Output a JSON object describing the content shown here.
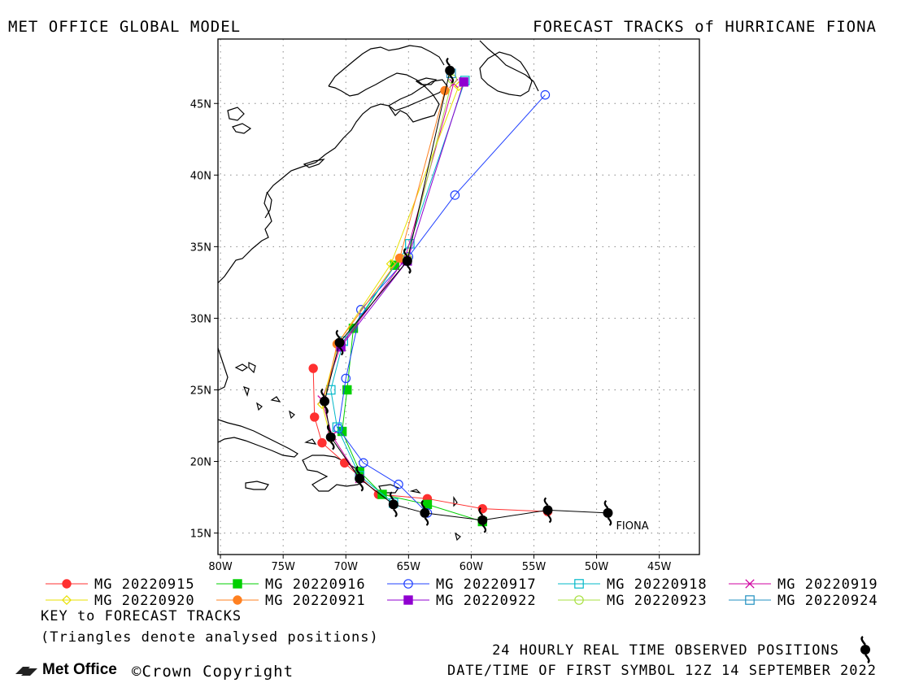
{
  "header": {
    "left": "MET OFFICE GLOBAL MODEL",
    "right": "FORECAST TRACKS of HURRICANE FIONA"
  },
  "footer": {
    "key_title": "KEY to FORECAST TRACKS",
    "key_subtitle": "(Triangles denote analysed positions)",
    "observed_note": "24 HOURLY REAL TIME OBSERVED POSITIONS",
    "first_symbol": "DATE/TIME OF FIRST SYMBOL 12Z 14 SEPTEMBER 2022",
    "logo": "Met Office",
    "copyright": "Crown Copyright"
  },
  "chart_data": {
    "type": "line",
    "title": "FORECAST TRACKS of HURRICANE FIONA",
    "xlabel": "",
    "ylabel": "",
    "xlim": [
      -80.2,
      -41.8
    ],
    "ylim": [
      13.5,
      49.5
    ],
    "xticks": [
      -80,
      -75,
      -70,
      -65,
      -60,
      -55,
      -50,
      -45
    ],
    "xtick_labels": [
      "80W",
      "75W",
      "70W",
      "65W",
      "60W",
      "55W",
      "50W",
      "45W"
    ],
    "yticks": [
      15,
      20,
      25,
      30,
      35,
      40,
      45
    ],
    "ytick_labels": [
      "15N",
      "20N",
      "25N",
      "30N",
      "35N",
      "40N",
      "45N"
    ],
    "grid": true,
    "storm_label": "FIONA",
    "observed": {
      "name": "24 HOURLY REAL TIME OBSERVED POSITIONS",
      "lons": [
        -49.1,
        -53.9,
        -59.1,
        -63.7,
        -66.2,
        -68.9,
        -71.2,
        -71.7,
        -70.5,
        -65.1,
        -61.7
      ],
      "lats": [
        16.4,
        16.6,
        15.9,
        16.4,
        17.0,
        18.8,
        21.7,
        24.2,
        28.3,
        34.0,
        47.3
      ]
    },
    "series": [
      {
        "name": "MG 20220915",
        "color": "#ff3030",
        "marker": "circle-filled",
        "lons": [
          -53.9,
          -59.1,
          -63.5,
          -67.4,
          -70.1,
          -71.9,
          -72.5,
          -72.6
        ],
        "lats": [
          16.5,
          16.7,
          17.4,
          17.7,
          19.9,
          21.3,
          23.1,
          26.5
        ]
      },
      {
        "name": "MG 20220916",
        "color": "#00d000",
        "marker": "square-filled",
        "lons": [
          -59.1,
          -63.5,
          -67.1,
          -68.9,
          -70.3,
          -69.9,
          -69.4,
          -66.1
        ],
        "lats": [
          15.8,
          17.0,
          17.7,
          19.3,
          22.1,
          25.0,
          29.3,
          33.7
        ]
      },
      {
        "name": "MG 20220917",
        "color": "#2040ff",
        "marker": "circle-open",
        "lons": [
          -63.5,
          -65.8,
          -68.6,
          -70.6,
          -70.0,
          -68.8,
          -65.0,
          -61.3,
          -54.1
        ],
        "lats": [
          16.4,
          18.4,
          19.9,
          22.3,
          25.8,
          30.6,
          34.3,
          38.6,
          45.6
        ]
      },
      {
        "name": "MG 20220918",
        "color": "#00b8c8",
        "marker": "square-open",
        "lons": [
          -66.2,
          -68.9,
          -70.7,
          -71.2,
          -70.2,
          -64.9,
          -60.5
        ],
        "lats": [
          17.1,
          19.0,
          22.4,
          25.0,
          28.4,
          35.2,
          46.6
        ]
      },
      {
        "name": "MG 20220919",
        "color": "#d000a0",
        "marker": "x",
        "lons": [
          -68.9,
          -71.1,
          -71.9,
          -70.4,
          -65.3,
          -61.4
        ],
        "lats": [
          18.8,
          21.8,
          24.3,
          28.1,
          34.1,
          46.4
        ]
      },
      {
        "name": "MG 20220920",
        "color": "#e8e000",
        "marker": "diamond-open",
        "lons": [
          -71.2,
          -71.9,
          -70.6,
          -66.4,
          -61.0
        ],
        "lats": [
          21.6,
          24.0,
          28.3,
          33.8,
          46.2
        ]
      },
      {
        "name": "MG 20220921",
        "color": "#ff8020",
        "marker": "circle-filled",
        "lons": [
          -71.7,
          -70.7,
          -65.7,
          -62.1
        ],
        "lats": [
          24.2,
          28.2,
          34.2,
          45.9
        ]
      },
      {
        "name": "MG 20220922",
        "color": "#9000d0",
        "marker": "square-filled",
        "lons": [
          -70.4,
          -65.1,
          -60.6
        ],
        "lats": [
          28.0,
          34.0,
          46.5
        ]
      },
      {
        "name": "MG 20220923",
        "color": "#a8e040",
        "marker": "circle-open",
        "lons": [
          -65.1,
          -61.5
        ],
        "lats": [
          34.2,
          46.7
        ]
      },
      {
        "name": "MG 20220924",
        "color": "#2090c0",
        "marker": "square-open",
        "lons": [
          -61.6
        ],
        "lats": [
          47.1
        ]
      }
    ]
  }
}
